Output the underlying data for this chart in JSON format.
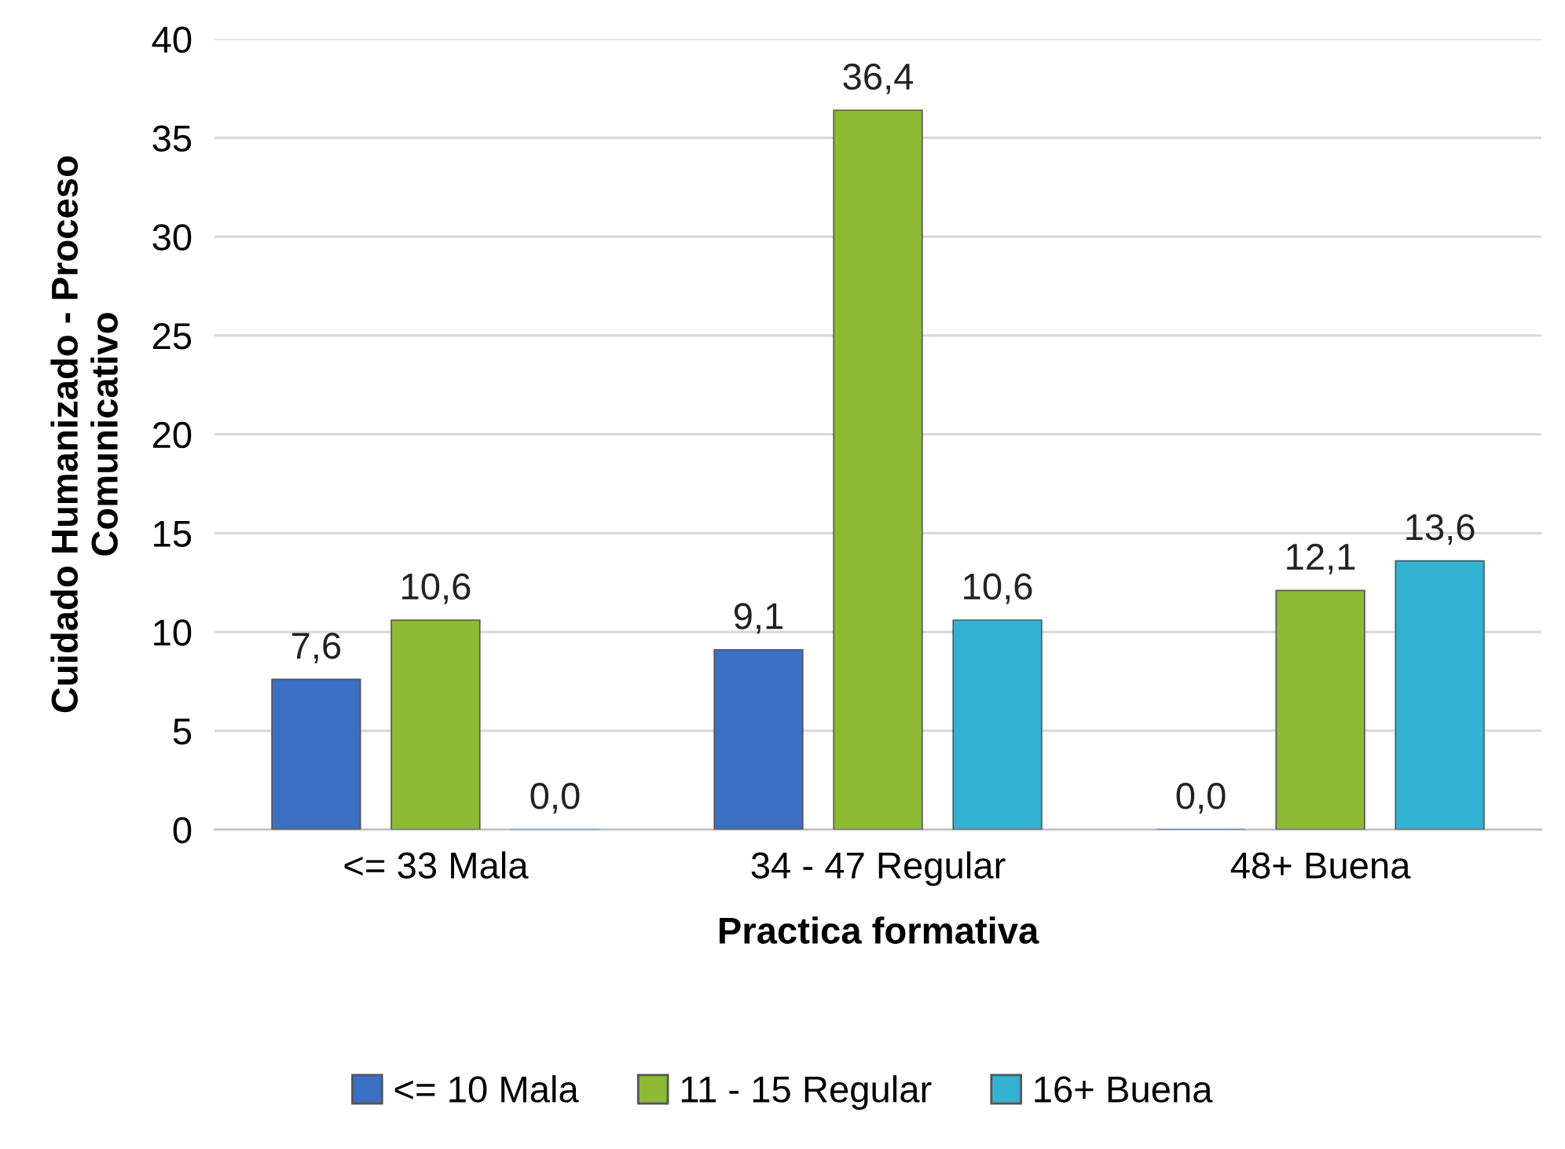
{
  "chart_data": {
    "type": "bar",
    "xlabel": "Practica formativa",
    "ylabel": "Cuidado Humanizado - Proceso\nComunicativo",
    "categories": [
      "<= 33 Mala",
      "34 - 47 Regular",
      "48+ Buena"
    ],
    "series": [
      {
        "name": "<= 10 Mala",
        "color": "#3b6fc4",
        "values": [
          7.6,
          9.1,
          0.0
        ],
        "value_labels": [
          "7,6",
          "9,1",
          "0,0"
        ]
      },
      {
        "name": "11 - 15 Regular",
        "color": "#8dba33",
        "values": [
          10.6,
          36.4,
          12.1
        ],
        "value_labels": [
          "10,6",
          "36,4",
          "12,1"
        ]
      },
      {
        "name": "16+ Buena",
        "color": "#33b2d2",
        "values": [
          0.0,
          10.6,
          13.6
        ],
        "value_labels": [
          "0,0",
          "10,6",
          "13,6"
        ]
      }
    ],
    "ylim": [
      0,
      40
    ],
    "yticks": [
      0,
      5,
      10,
      15,
      20,
      25,
      30,
      35,
      40
    ],
    "grid": "y",
    "legend": "bottom"
  }
}
